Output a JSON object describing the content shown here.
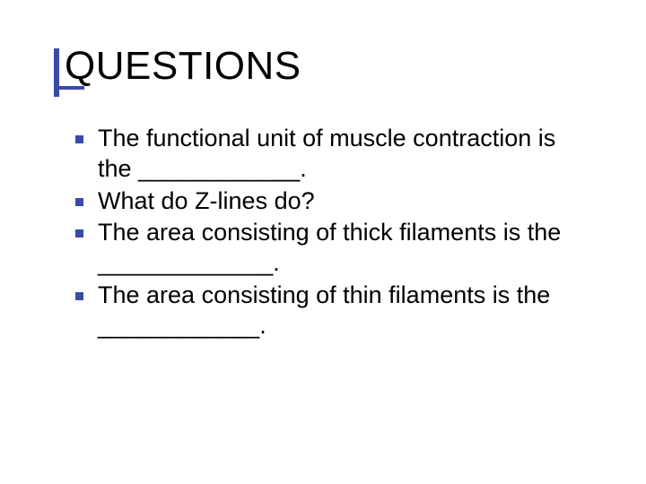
{
  "title": "QUESTIONS",
  "accent_color": "#3a4aa8",
  "bullet_color": "#3a4aa8",
  "text_color": "#000000",
  "items": [
    {
      "text": "The functional unit of muscle contraction is the ____________."
    },
    {
      "text": "What do Z-lines do?"
    },
    {
      "text": "The area consisting of thick filaments is the _____________."
    },
    {
      "text": "The area consisting of thin filaments is the ____________."
    }
  ]
}
